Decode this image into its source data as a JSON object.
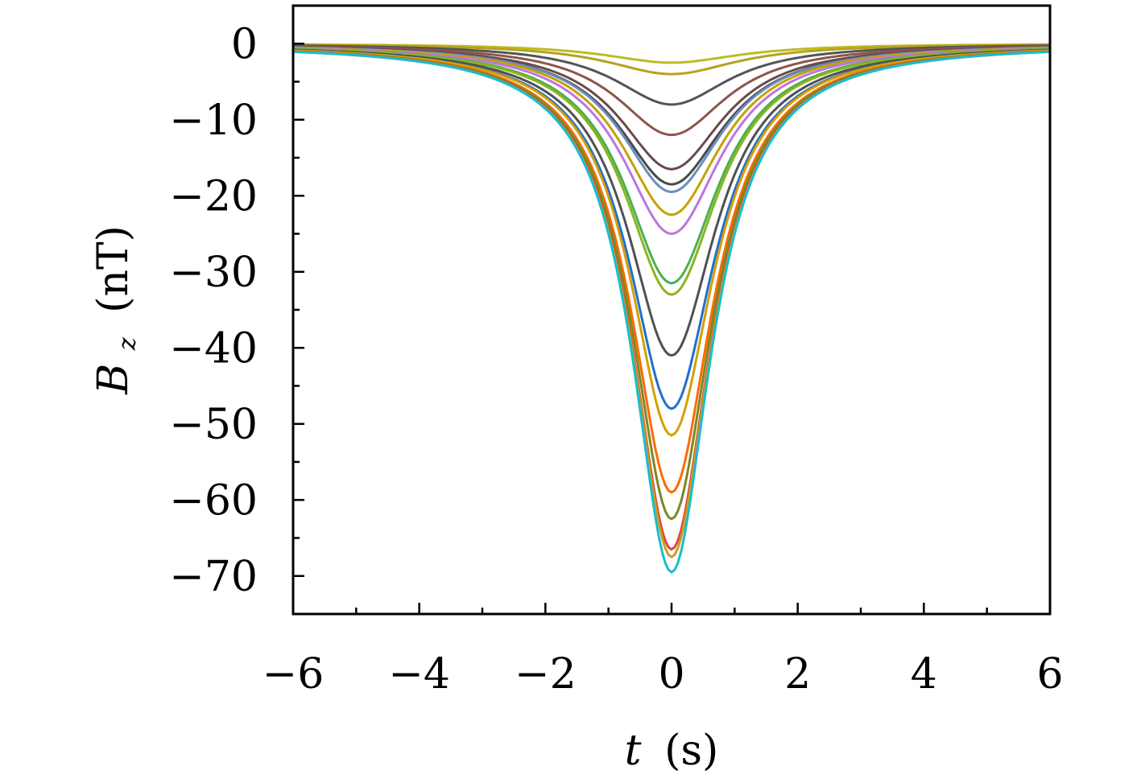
{
  "chart_data": {
    "type": "line",
    "xlabel": {
      "var": "t",
      "unit": "(s)"
    },
    "ylabel": {
      "var": "B",
      "sub": "z",
      "unit": "(nT)"
    },
    "xlim": [
      -6,
      6
    ],
    "ylim": [
      -75,
      5
    ],
    "xticks": [
      -6,
      -4,
      -2,
      0,
      2,
      4,
      6
    ],
    "xtick_labels": [
      "−6",
      "−4",
      "−2",
      "0",
      "2",
      "4",
      "6"
    ],
    "yticks": [
      0,
      -10,
      -20,
      -30,
      -40,
      -50,
      -60,
      -70
    ],
    "ytick_labels": [
      "0",
      "−10",
      "−20",
      "−30",
      "−40",
      "−50",
      "−60",
      "−70"
    ],
    "grid": false,
    "legend": false,
    "curve_shape": "lorentzian-like dip centered at t = 0",
    "series": [
      {
        "peak": -2.5,
        "width": 1.3,
        "color": "#bcbd22"
      },
      {
        "peak": -4.0,
        "width": 1.25,
        "color": "#b8a020"
      },
      {
        "peak": -8.0,
        "width": 1.1,
        "color": "#555555"
      },
      {
        "peak": -12.0,
        "width": 1.05,
        "color": "#8c564b"
      },
      {
        "peak": -16.5,
        "width": 1.0,
        "color": "#6b4a4a"
      },
      {
        "peak": -18.5,
        "width": 1.0,
        "color": "#4a4a4a"
      },
      {
        "peak": -19.5,
        "width": 0.98,
        "color": "#6a8fbf"
      },
      {
        "peak": -22.5,
        "width": 0.95,
        "color": "#c8a000"
      },
      {
        "peak": -25.0,
        "width": 0.95,
        "color": "#bb77dd"
      },
      {
        "peak": -31.5,
        "width": 0.9,
        "color": "#4caf50"
      },
      {
        "peak": -33.0,
        "width": 0.9,
        "color": "#8ab520"
      },
      {
        "peak": -41.0,
        "width": 0.85,
        "color": "#505050"
      },
      {
        "peak": -48.0,
        "width": 0.82,
        "color": "#1f6fd0"
      },
      {
        "peak": -51.5,
        "width": 0.8,
        "color": "#d4a000"
      },
      {
        "peak": -59.0,
        "width": 0.78,
        "color": "#ff6a00"
      },
      {
        "peak": -62.5,
        "width": 0.77,
        "color": "#7a8a20"
      },
      {
        "peak": -66.5,
        "width": 0.76,
        "color": "#e8413c"
      },
      {
        "peak": -67.5,
        "width": 0.76,
        "color": "#c8a020"
      },
      {
        "peak": -69.5,
        "width": 0.75,
        "color": "#17becf"
      }
    ]
  }
}
